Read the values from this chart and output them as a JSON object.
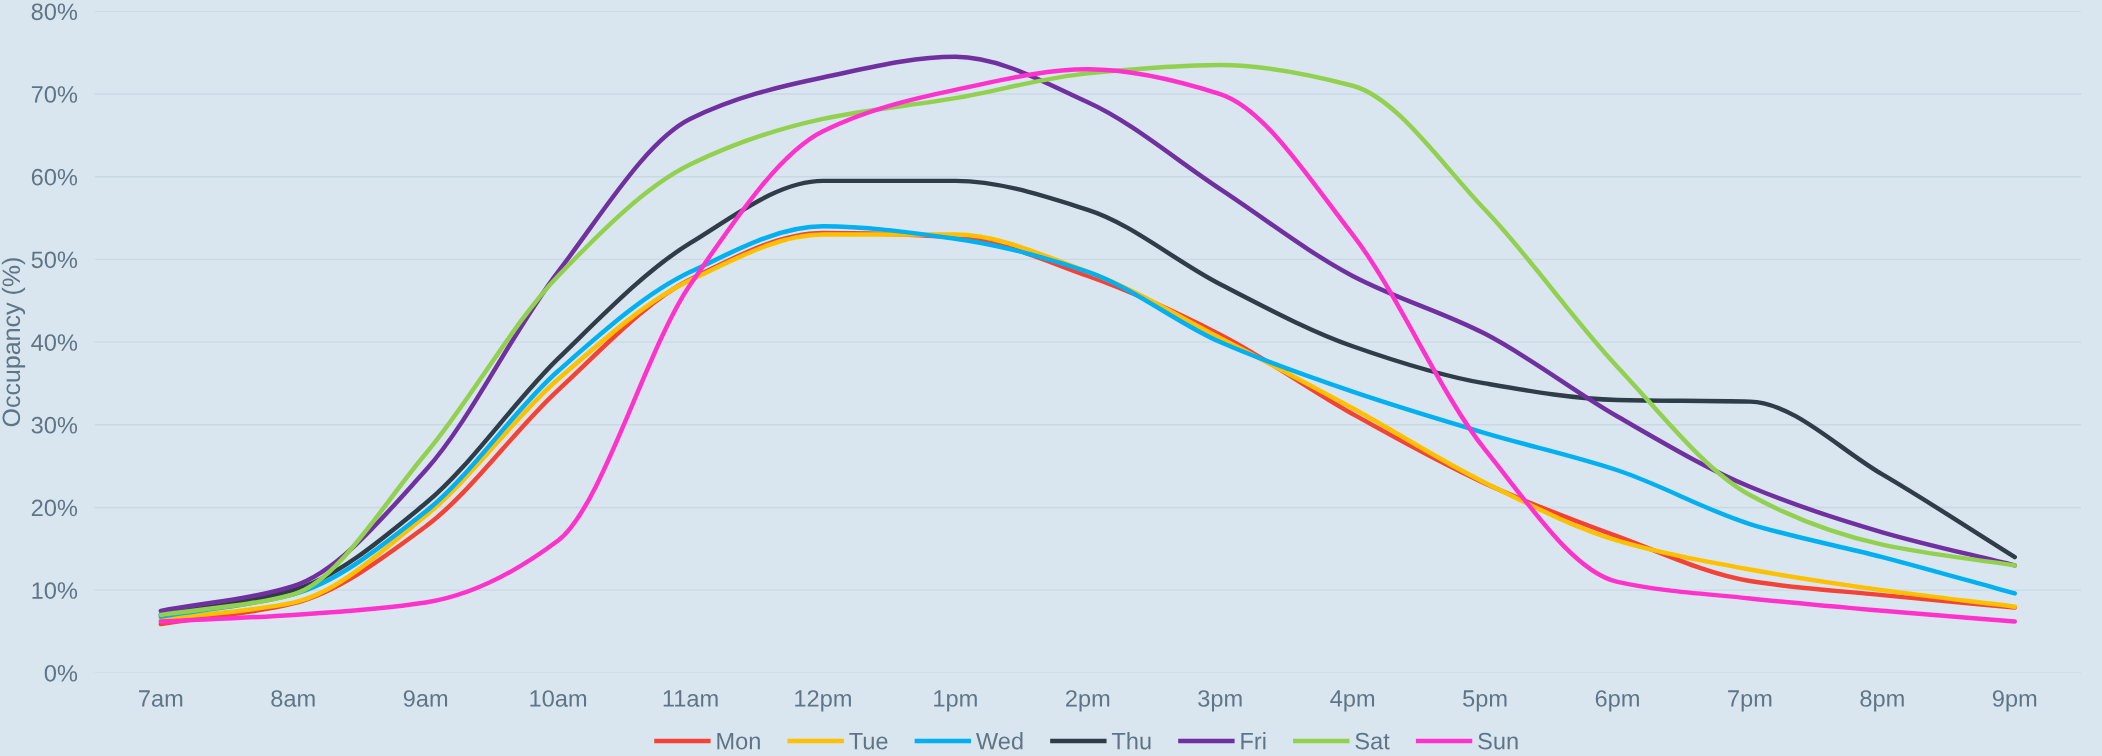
{
  "chart_data": {
    "type": "line",
    "ylabel": "Occupancy (%)",
    "categories": [
      "7am",
      "8am",
      "9am",
      "10am",
      "11am",
      "12pm",
      "1pm",
      "2pm",
      "3pm",
      "4pm",
      "5pm",
      "6pm",
      "7pm",
      "8pm",
      "9pm"
    ],
    "ylim": [
      0,
      80
    ],
    "yticks": [
      {
        "value": 0,
        "label": "0%"
      },
      {
        "value": 10,
        "label": "10%"
      },
      {
        "value": 20,
        "label": "20%"
      },
      {
        "value": 30,
        "label": "30%"
      },
      {
        "value": 40,
        "label": "40%"
      },
      {
        "value": 50,
        "label": "50%"
      },
      {
        "value": 60,
        "label": "60%"
      },
      {
        "value": 70,
        "label": "70%"
      },
      {
        "value": 80,
        "label": "80%"
      }
    ],
    "grid": "y",
    "legend": "bottom",
    "marker": "none",
    "line_style": "solid",
    "series": [
      {
        "name": "Mon",
        "color": "#f44336",
        "values": [
          5.9,
          8.4,
          17.7,
          34.2,
          47.6,
          53.2,
          52.7,
          48,
          40.9,
          31.3,
          22.9,
          16.5,
          11.1,
          9.4,
          7.9
        ]
      },
      {
        "name": "Tue",
        "color": "#ffc000",
        "values": [
          6.5,
          8.5,
          19,
          35.5,
          47.5,
          53,
          53,
          48.5,
          40.5,
          32,
          23,
          16,
          12.5,
          10,
          8
        ]
      },
      {
        "name": "Wed",
        "color": "#00b0f0",
        "values": [
          6.8,
          9.5,
          19.5,
          36.5,
          48.5,
          54,
          52.5,
          48.5,
          40,
          34,
          29,
          24.5,
          18,
          14,
          9.6
        ]
      },
      {
        "name": "Thu",
        "color": "#2e3d47",
        "values": [
          7,
          10,
          20.5,
          38,
          52,
          59.5,
          59.5,
          56,
          47,
          39.5,
          35,
          33,
          32.8,
          24,
          14
        ]
      },
      {
        "name": "Fri",
        "color": "#7030a0",
        "values": [
          7.5,
          10.5,
          24.5,
          48.5,
          67,
          72,
          74.5,
          69,
          58.5,
          48,
          41,
          31,
          22.5,
          17,
          13
        ]
      },
      {
        "name": "Sat",
        "color": "#92d050",
        "values": [
          7,
          9.5,
          26.5,
          48,
          61.5,
          67,
          69.5,
          72.5,
          73.5,
          71,
          56,
          37,
          21.5,
          15.5,
          13
        ]
      },
      {
        "name": "Sun",
        "color": "#ff33cc",
        "values": [
          6.2,
          7,
          8.5,
          16,
          47,
          65.5,
          70.5,
          73,
          70,
          53,
          27,
          11,
          9,
          7.5,
          6.2
        ]
      }
    ]
  }
}
